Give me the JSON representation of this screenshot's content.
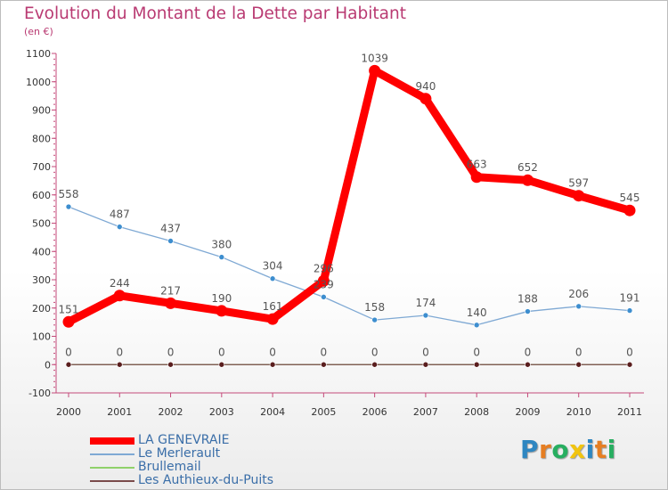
{
  "header": {
    "title": "Evolution du Montant de la Dette par Habitant",
    "subtitle": "(en €)"
  },
  "logo": {
    "text": "Proxiti",
    "letters": [
      {
        "ch": "P",
        "color": "#2e86c1"
      },
      {
        "ch": "r",
        "color": "#e67e22"
      },
      {
        "ch": "o",
        "color": "#27ae60"
      },
      {
        "ch": "x",
        "color": "#f1c40f"
      },
      {
        "ch": "i",
        "color": "#2e86c1"
      },
      {
        "ch": "t",
        "color": "#e67e22"
      },
      {
        "ch": "i",
        "color": "#27ae60"
      }
    ]
  },
  "chart_data": {
    "type": "line",
    "title": "Evolution du Montant de la Dette par Habitant",
    "subtitle": "(en €)",
    "xlabel": "",
    "ylabel": "",
    "ylim": [
      -100,
      1100
    ],
    "yticks": [
      -100,
      0,
      100,
      200,
      300,
      400,
      500,
      600,
      700,
      800,
      900,
      1000,
      1100
    ],
    "categories": [
      "2000",
      "2001",
      "2002",
      "2003",
      "2004",
      "2005",
      "2006",
      "2007",
      "2008",
      "2009",
      "2010",
      "2011"
    ],
    "grid": false,
    "legend_position": "bottom-left",
    "series": [
      {
        "name": "LA GENEVRAIE",
        "color": "#ff0000",
        "marker_color": "#ff0000",
        "label_color": "#555555",
        "style": "thick",
        "values": [
          151,
          244,
          217,
          190,
          161,
          296,
          1039,
          940,
          663,
          652,
          597,
          545
        ],
        "labels": [
          "151",
          "244",
          "217",
          "190",
          "161",
          "296",
          "1039",
          "940",
          "663",
          "652",
          "597",
          "545"
        ]
      },
      {
        "name": "Le Merlerault",
        "color": "#7fa9d4",
        "marker_color": "#3d8ecf",
        "label_color": "#555555",
        "style": "thin",
        "values": [
          558,
          487,
          437,
          380,
          304,
          239,
          158,
          174,
          140,
          188,
          206,
          191
        ],
        "labels": [
          "558",
          "487",
          "437",
          "380",
          "304",
          "239",
          "158",
          "174",
          "140",
          "188",
          "206",
          "191"
        ]
      },
      {
        "name": "Brullemail",
        "color": "#8fd16a",
        "marker_color": "#8fd16a",
        "label_color": "#555555",
        "style": "thin",
        "values": [
          0,
          0,
          0,
          0,
          0,
          0,
          0,
          0,
          0,
          0,
          0,
          0
        ],
        "labels": []
      },
      {
        "name": "Les Authieux-du-Puits",
        "color": "#7a4b4b",
        "marker_color": "#5a1e1e",
        "label_color": "#555555",
        "style": "thin",
        "values": [
          0,
          0,
          0,
          0,
          0,
          0,
          0,
          0,
          0,
          0,
          0,
          0
        ],
        "labels": [
          "0",
          "0",
          "0",
          "0",
          "0",
          "0",
          "0",
          "0",
          "0",
          "0",
          "0",
          "0"
        ]
      }
    ]
  }
}
